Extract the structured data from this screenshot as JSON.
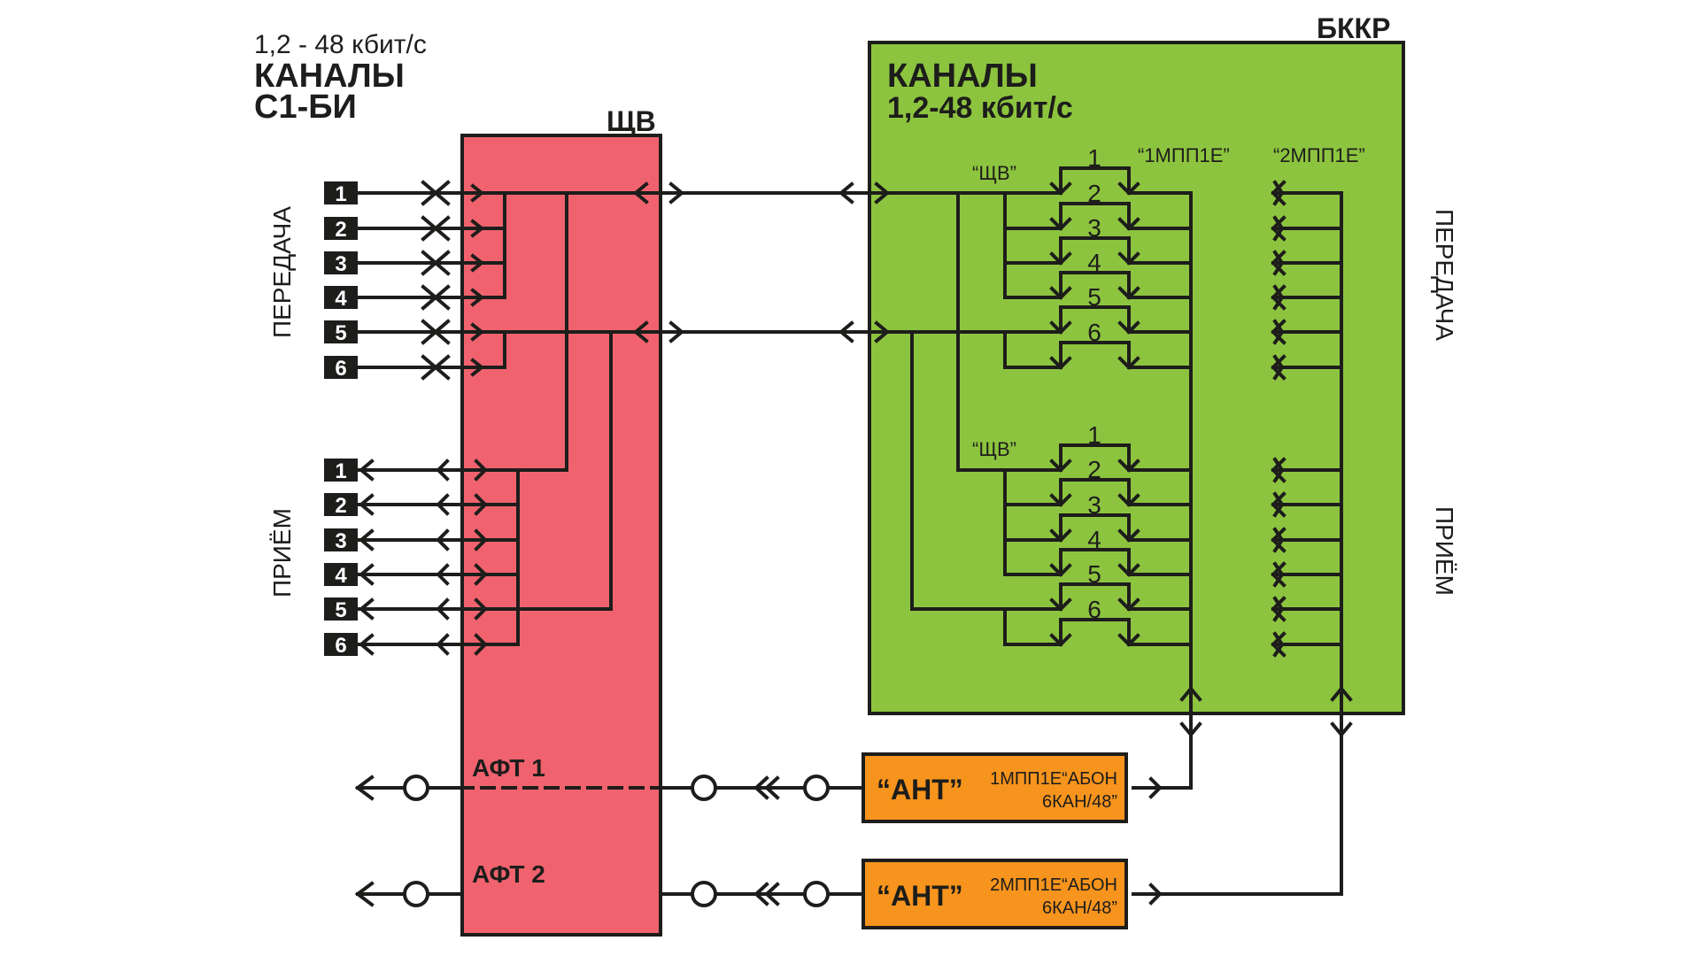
{
  "header": {
    "rate": "1,2 - 48 кбит/с",
    "title_line1": "КАНАЛЫ",
    "title_line2": "С1-БИ"
  },
  "schv_block": {
    "label": "ЩВ",
    "color": "#f0636e"
  },
  "bkkr_block": {
    "label": "БККР",
    "title_line1": "КАНАЛЫ",
    "title_line2": "1,2-48 кбит/с",
    "color": "#8dc43f",
    "label_schv": "“ЩВ”",
    "label_1mpp": "“1МПП1Е”",
    "label_2mpp": "“2МПП1Е”"
  },
  "left_side": {
    "transmit_label": "ПЕРЕДАЧА",
    "receive_label": "ПРИЁМ",
    "transmit_channels": [
      "1",
      "2",
      "3",
      "4",
      "5",
      "6"
    ],
    "receive_channels": [
      "1",
      "2",
      "3",
      "4",
      "5",
      "6"
    ]
  },
  "right_side": {
    "transmit_label": "ПЕРЕДАЧА",
    "receive_label": "ПРИЁМ"
  },
  "switch_numbers_top": [
    "1",
    "2",
    "3",
    "4",
    "5",
    "6"
  ],
  "switch_numbers_bottom": [
    "1",
    "2",
    "3",
    "4",
    "5",
    "6"
  ],
  "antenna_feeds": {
    "aft1": "АФТ 1",
    "aft2": "АФТ 2"
  },
  "ant_units": [
    {
      "name": "“АНТ”",
      "line1": "1МПП1Е“АБОН",
      "line2": "6КАН/48”"
    },
    {
      "name": "“АНТ”",
      "line1": "2МПП1Е“АБОН",
      "line2": "6КАН/48”"
    }
  ],
  "ant_color": "#f7941d"
}
